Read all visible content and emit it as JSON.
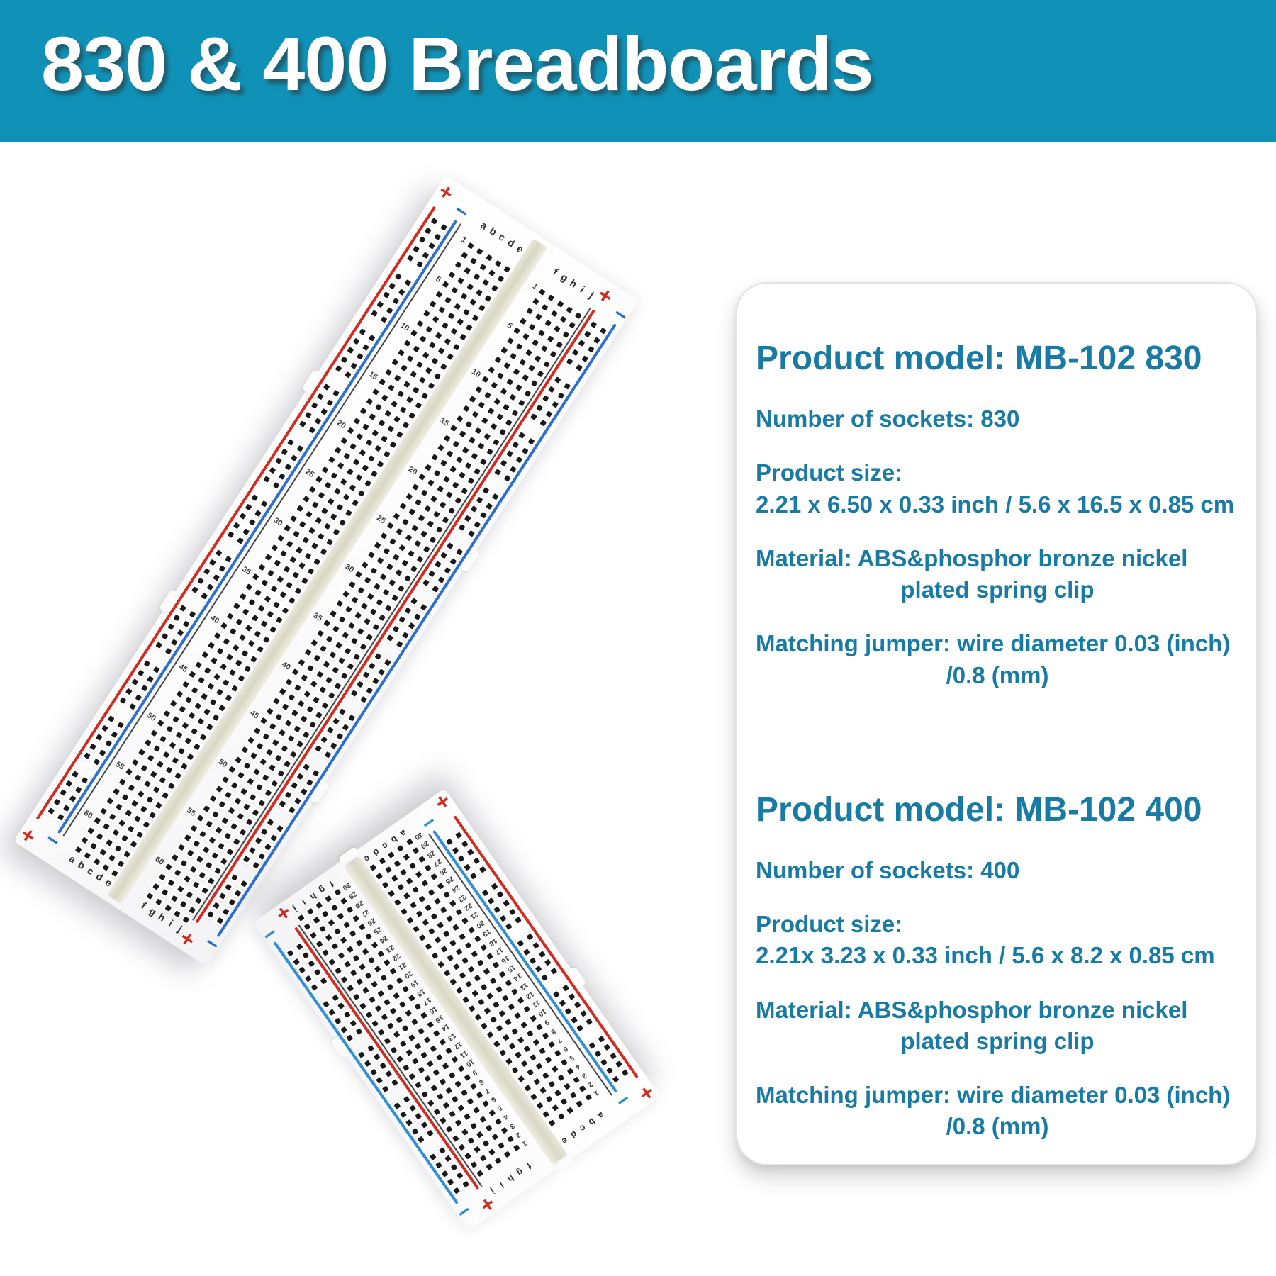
{
  "header": {
    "title": "830 & 400 Breadboards",
    "bg_color": "#1092b8",
    "text_color": "#ffffff"
  },
  "spec_card": {
    "text_color": "#187ba6",
    "sections": [
      {
        "model_label": "Product model: MB-102 830",
        "sockets": "Number of sockets: 830",
        "size_label": "Product size:",
        "size_value": "2.21 x 6.50 x 0.33 inch / 5.6 x 16.5 x 0.85 cm",
        "material_line1": "Material: ABS&phosphor bronze nickel",
        "material_line2": "plated spring clip",
        "jumper_line1": "Matching jumper: wire diameter 0.03 (inch)",
        "jumper_line2": "/0.8 (mm)"
      },
      {
        "model_label": "Product model: MB-102 400",
        "sockets": "Number of sockets: 400",
        "size_label": "Product size:",
        "size_value": "2.21x 3.23 x 0.33 inch / 5.6 x 8.2 x 0.85 cm",
        "material_line1": "Material: ABS&phosphor bronze nickel",
        "material_line2": "plated spring clip",
        "jumper_line1": "Matching jumper: wire diameter 0.03 (inch)",
        "jumper_line2": "/0.8 (mm)"
      }
    ]
  },
  "boards": {
    "mb830": {
      "name": "830 tie-point breadboard",
      "plus": "+",
      "minus": "−",
      "letters_left": [
        "a",
        "b",
        "c",
        "d",
        "e"
      ],
      "letters_right": [
        "f",
        "g",
        "h",
        "i",
        "j"
      ],
      "rows": 63,
      "row_labels": [
        1,
        5,
        10,
        15,
        20,
        25,
        30,
        35,
        40,
        45,
        50,
        55,
        60
      ],
      "colors": {
        "rail_red": "#d32b20",
        "rail_blue": "#2b6fd0",
        "hole": "#191919",
        "channel": "#d8d6c3",
        "board": "#fcfcfd"
      }
    },
    "mb400": {
      "name": "400 tie-point breadboard",
      "plus": "+",
      "minus": "−",
      "letters_left": [
        "a",
        "b",
        "c",
        "d",
        "e"
      ],
      "letters_right": [
        "f",
        "g",
        "h",
        "i",
        "j"
      ],
      "rows": 30,
      "row_labels": [
        1,
        2,
        3,
        4,
        5,
        6,
        7,
        8,
        9,
        10,
        11,
        12,
        13,
        14,
        15,
        16,
        17,
        18,
        19,
        20,
        21,
        22,
        23,
        24,
        25,
        26,
        27,
        28,
        29,
        30
      ],
      "colors": {
        "rail_red": "#d32b20",
        "rail_blue": "#2f8fd8",
        "hole": "#191919",
        "channel": "#d9d8c6",
        "board": "#fcfcfd"
      }
    }
  }
}
